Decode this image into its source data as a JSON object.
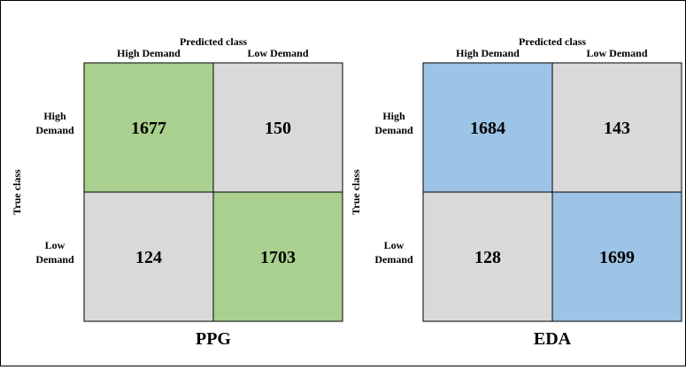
{
  "colors": {
    "ppg_diag": "#a9d08e",
    "eda_diag": "#9dc3e6",
    "off_diag": "#d9d9d9",
    "border": "#000000"
  },
  "chart_data": [
    {
      "type": "heatmap",
      "title": "PPG",
      "xlabel": "Predicted class",
      "ylabel": "True class",
      "x_categories": [
        "High Demand",
        "Low Demand"
      ],
      "y_categories": [
        "High Demand",
        "Low Demand"
      ],
      "y_tick_lines": [
        [
          "High",
          "Demand"
        ],
        [
          "Low",
          "Demand"
        ]
      ],
      "values": [
        [
          1677,
          150
        ],
        [
          124,
          1703
        ]
      ]
    },
    {
      "type": "heatmap",
      "title": "EDA",
      "xlabel": "Predicted class",
      "ylabel": "True class",
      "x_categories": [
        "High Demand",
        "Low Demand"
      ],
      "y_categories": [
        "High Demand",
        "Low Demand"
      ],
      "y_tick_lines": [
        [
          "High",
          "Demand"
        ],
        [
          "Low",
          "Demand"
        ]
      ],
      "values": [
        [
          1684,
          143
        ],
        [
          128,
          1699
        ]
      ]
    }
  ]
}
